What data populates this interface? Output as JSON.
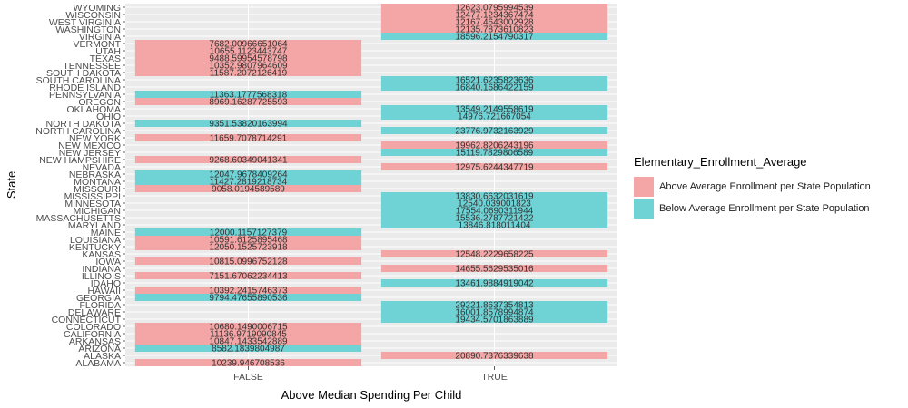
{
  "chart_data": {
    "type": "bar",
    "title": "",
    "xlabel": "Above Median Spending Per Child",
    "ylabel": "State",
    "x_categories": [
      "FALSE",
      "TRUE"
    ],
    "legend": {
      "title": "Elementary_Enrollment_Average",
      "position": "right",
      "entries": [
        {
          "label": "Above Average Enrollment per State Population",
          "color": "#f4a5a5"
        },
        {
          "label": "Below Average Enrollment per State Population",
          "color": "#6fd3d6"
        }
      ]
    },
    "grid": true,
    "states": [
      {
        "state": "ALABAMA",
        "x": "FALSE",
        "value": "10239.946708536",
        "group": "Above"
      },
      {
        "state": "ALASKA",
        "x": "TRUE",
        "value": "20890.7376339638",
        "group": "Above"
      },
      {
        "state": "ARIZONA",
        "x": "FALSE",
        "value": "8582.1839804987",
        "group": "Below"
      },
      {
        "state": "ARKANSAS",
        "x": "FALSE",
        "value": "10847.1433542889",
        "group": "Above"
      },
      {
        "state": "CALIFORNIA",
        "x": "FALSE",
        "value": "11136.9719090845",
        "group": "Above"
      },
      {
        "state": "COLORADO",
        "x": "FALSE",
        "value": "10680.1490006715",
        "group": "Above"
      },
      {
        "state": "CONNECTICUT",
        "x": "TRUE",
        "value": "19434.5701863889",
        "group": "Below"
      },
      {
        "state": "DELAWARE",
        "x": "TRUE",
        "value": "16001.8578994874",
        "group": "Below"
      },
      {
        "state": "FLORIDA",
        "x": "TRUE",
        "value": "29221.8637354813",
        "group": "Below"
      },
      {
        "state": "GEORGIA",
        "x": "FALSE",
        "value": "9794.47655890536",
        "group": "Below"
      },
      {
        "state": "HAWAII",
        "x": "FALSE",
        "value": "10392.2415746373",
        "group": "Above"
      },
      {
        "state": "IDAHO",
        "x": "TRUE",
        "value": "13461.9884919042",
        "group": "Below"
      },
      {
        "state": "ILLINOIS",
        "x": "FALSE",
        "value": "7151.67062234413",
        "group": "Above"
      },
      {
        "state": "INDIANA",
        "x": "TRUE",
        "value": "14655.5629535016",
        "group": "Above"
      },
      {
        "state": "IOWA",
        "x": "FALSE",
        "value": "10815.0996752128",
        "group": "Above"
      },
      {
        "state": "KANSAS",
        "x": "TRUE",
        "value": "12548.2229658225",
        "group": "Above"
      },
      {
        "state": "KENTUCKY",
        "x": "FALSE",
        "value": "12050.1525723918",
        "group": "Above"
      },
      {
        "state": "LOUISIANA",
        "x": "FALSE",
        "value": "10591.6125895468",
        "group": "Above"
      },
      {
        "state": "MAINE",
        "x": "FALSE",
        "value": "12000.1157127379",
        "group": "Below"
      },
      {
        "state": "MARYLAND",
        "x": "TRUE",
        "value": "13846.818011404",
        "group": "Below"
      },
      {
        "state": "MASSACHUSETTS",
        "x": "TRUE",
        "value": "15536.2787721422",
        "group": "Below"
      },
      {
        "state": "MICHIGAN",
        "x": "TRUE",
        "value": "17554.0690311944",
        "group": "Below"
      },
      {
        "state": "MINNESOTA",
        "x": "TRUE",
        "value": "12540.039001823",
        "group": "Below"
      },
      {
        "state": "MISSISSIPPI",
        "x": "TRUE",
        "value": "13830.6632031619",
        "group": "Below"
      },
      {
        "state": "MISSOURI",
        "x": "FALSE",
        "value": "9058.0194589589",
        "group": "Above"
      },
      {
        "state": "MONTANA",
        "x": "FALSE",
        "value": "11427.2819218734",
        "group": "Below"
      },
      {
        "state": "NEBRASKA",
        "x": "FALSE",
        "value": "12047.9678409264",
        "group": "Below"
      },
      {
        "state": "NEVADA",
        "x": "TRUE",
        "value": "12975.6244347719",
        "group": "Above"
      },
      {
        "state": "NEW HAMPSHIRE",
        "x": "FALSE",
        "value": "9268.60349041341",
        "group": "Above"
      },
      {
        "state": "NEW JERSEY",
        "x": "TRUE",
        "value": "15119.7829806589",
        "group": "Below"
      },
      {
        "state": "NEW MEXICO",
        "x": "TRUE",
        "value": "19962.8206243196",
        "group": "Above"
      },
      {
        "state": "NEW YORK",
        "x": "FALSE",
        "value": "11659.7078714291",
        "group": "Above"
      },
      {
        "state": "NORTH CAROLINA",
        "x": "TRUE",
        "value": "23776.9732163929",
        "group": "Below"
      },
      {
        "state": "NORTH DAKOTA",
        "x": "FALSE",
        "value": "9351.53820163994",
        "group": "Below"
      },
      {
        "state": "OHIO",
        "x": "TRUE",
        "value": "14976.721667054",
        "group": "Below"
      },
      {
        "state": "OKLAHOMA",
        "x": "TRUE",
        "value": "13549.2149558619",
        "group": "Below"
      },
      {
        "state": "OREGON",
        "x": "FALSE",
        "value": "8969.16287725593",
        "group": "Above"
      },
      {
        "state": "PENNSYLVANIA",
        "x": "FALSE",
        "value": "11363.1777568318",
        "group": "Below"
      },
      {
        "state": "RHODE ISLAND",
        "x": "TRUE",
        "value": "16840.1686422159",
        "group": "Below"
      },
      {
        "state": "SOUTH CAROLINA",
        "x": "TRUE",
        "value": "16521.6235823636",
        "group": "Below"
      },
      {
        "state": "SOUTH DAKOTA",
        "x": "FALSE",
        "value": "11587.2072126419",
        "group": "Above"
      },
      {
        "state": "TENNESSEE",
        "x": "FALSE",
        "value": "10352.9807964609",
        "group": "Above"
      },
      {
        "state": "TEXAS",
        "x": "FALSE",
        "value": "9488.59954578798",
        "group": "Above"
      },
      {
        "state": "UTAH",
        "x": "FALSE",
        "value": "10655.1123443747",
        "group": "Above"
      },
      {
        "state": "VERMONT",
        "x": "FALSE",
        "value": "7682.00966651064",
        "group": "Above"
      },
      {
        "state": "VIRGINIA",
        "x": "TRUE",
        "value": "18596.2154790317",
        "group": "Below"
      },
      {
        "state": "WASHINGTON",
        "x": "TRUE",
        "value": "12135.7873610823",
        "group": "Above"
      },
      {
        "state": "WEST VIRGINIA",
        "x": "TRUE",
        "value": "12167.4643002928",
        "group": "Above"
      },
      {
        "state": "WISCONSIN",
        "x": "TRUE",
        "value": "12477.1234367474",
        "group": "Above"
      },
      {
        "state": "WYOMING",
        "x": "TRUE",
        "value": "12623.0795994539",
        "group": "Above"
      }
    ]
  }
}
